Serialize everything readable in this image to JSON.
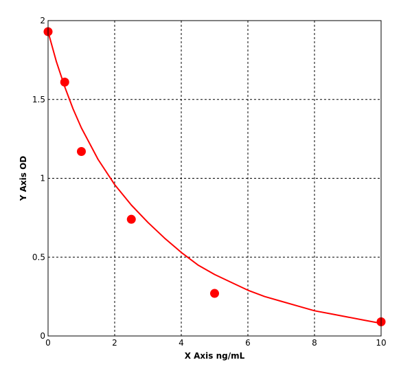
{
  "chart_data": {
    "type": "scatter",
    "title": "",
    "xlabel": "X Axis ng/mL",
    "ylabel": "Y Axis OD",
    "xlim": [
      0,
      10
    ],
    "ylim": [
      0,
      2
    ],
    "x_ticks": [
      0,
      2,
      4,
      6,
      8,
      10
    ],
    "x_tick_labels": [
      "0",
      "2",
      "4",
      "6",
      "8",
      "10"
    ],
    "y_ticks": [
      0,
      0.5,
      1,
      1.5,
      2
    ],
    "y_tick_labels": [
      "0",
      "0.5",
      "1",
      "1.5",
      "2"
    ],
    "grid": true,
    "legend": "none",
    "series": [
      {
        "x": [
          0,
          0.5,
          1,
          2.5,
          5,
          10
        ],
        "y": [
          1.93,
          1.61,
          1.17,
          0.74,
          0.27,
          0.09
        ],
        "marker": "circle",
        "color": "#ff0000"
      }
    ],
    "fit_curve": {
      "x": [
        0,
        0.25,
        0.5,
        0.75,
        1,
        1.5,
        2,
        2.5,
        3,
        3.5,
        4,
        4.5,
        5,
        5.5,
        6,
        6.5,
        7,
        7.5,
        8,
        8.5,
        9,
        9.5,
        10
      ],
      "y": [
        1.93,
        1.74,
        1.58,
        1.44,
        1.32,
        1.12,
        0.96,
        0.83,
        0.72,
        0.62,
        0.53,
        0.45,
        0.39,
        0.34,
        0.29,
        0.25,
        0.22,
        0.19,
        0.16,
        0.14,
        0.12,
        0.1,
        0.08
      ],
      "color": "#ff0000"
    }
  }
}
